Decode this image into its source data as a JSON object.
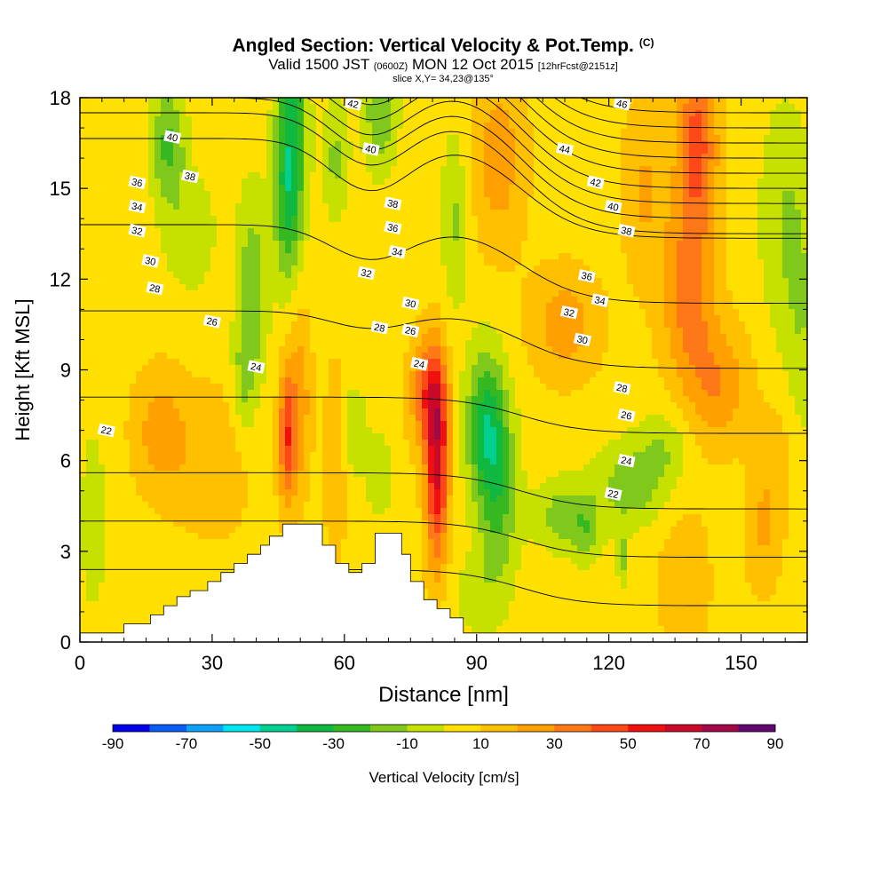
{
  "title": "Angled Section: Vertical Velocity & Pot.Temp.",
  "title_mark": "(C)",
  "subtitle_lead": "Valid 1500 JST",
  "subtitle_utc": "(0600Z)",
  "subtitle_date": "MON 12 Oct 2015",
  "subtitle_fcst": "[12hrFcst@2151z]",
  "slice_label": "slice X,Y= 34,23@135°",
  "chart_data": {
    "type": "heatmap",
    "xlabel": "Distance [nm]",
    "ylabel": "Height [Kft MSL]",
    "xlim": [
      0,
      165
    ],
    "ylim": [
      0,
      18
    ],
    "xticks": [
      0,
      30,
      60,
      90,
      120,
      150
    ],
    "yticks": [
      0,
      3,
      6,
      9,
      12,
      15,
      18
    ],
    "colorbar": {
      "label": "Vertical Velocity [cm/s]",
      "ticks": [
        -90,
        -70,
        -50,
        -30,
        -10,
        10,
        30,
        50,
        70,
        90
      ],
      "colors": [
        "#0000e8",
        "#0a5cf5",
        "#0fa0f7",
        "#00e6f0",
        "#00d090",
        "#10b840",
        "#35b820",
        "#80c81c",
        "#c6e000",
        "#ffe000",
        "#ffc000",
        "#ffa000",
        "#ff7818",
        "#ff4818",
        "#f01010",
        "#c80a28",
        "#a00848",
        "#600870"
      ]
    },
    "terrain_profile": [
      [
        0,
        0.3
      ],
      [
        10,
        0.3
      ],
      [
        10,
        0.6
      ],
      [
        16,
        0.6
      ],
      [
        16,
        0.9
      ],
      [
        19,
        0.9
      ],
      [
        19,
        1.2
      ],
      [
        22,
        1.2
      ],
      [
        22,
        1.5
      ],
      [
        25,
        1.5
      ],
      [
        25,
        1.7
      ],
      [
        29,
        1.7
      ],
      [
        29,
        2.0
      ],
      [
        32,
        2.0
      ],
      [
        32,
        2.3
      ],
      [
        35,
        2.3
      ],
      [
        35,
        2.6
      ],
      [
        38,
        2.6
      ],
      [
        38,
        2.9
      ],
      [
        41,
        2.9
      ],
      [
        41,
        3.2
      ],
      [
        43,
        3.2
      ],
      [
        43,
        3.5
      ],
      [
        46,
        3.5
      ],
      [
        46,
        3.9
      ],
      [
        55,
        3.9
      ],
      [
        55,
        3.2
      ],
      [
        58,
        3.2
      ],
      [
        58,
        2.6
      ],
      [
        61,
        2.6
      ],
      [
        61,
        2.3
      ],
      [
        64,
        2.3
      ],
      [
        64,
        2.6
      ],
      [
        67,
        2.6
      ],
      [
        67,
        3.6
      ],
      [
        73,
        3.6
      ],
      [
        73,
        2.9
      ],
      [
        75,
        2.9
      ],
      [
        75,
        2.0
      ],
      [
        78,
        2.0
      ],
      [
        78,
        1.4
      ],
      [
        81,
        1.4
      ],
      [
        81,
        1.1
      ],
      [
        84,
        1.1
      ],
      [
        84,
        0.8
      ],
      [
        87,
        0.8
      ],
      [
        87,
        0.3
      ],
      [
        165,
        0.3
      ]
    ],
    "isentropes_K": [
      22,
      24,
      26,
      28,
      30,
      32,
      34,
      36,
      38,
      40,
      42,
      44,
      46
    ],
    "w_extremes": [
      {
        "x": 81,
        "y": 5.8,
        "w": 55
      },
      {
        "x": 47,
        "y": 6.8,
        "w": 40
      },
      {
        "x": 92,
        "y": 7.2,
        "w": -38
      },
      {
        "x": 48,
        "y": 17,
        "w": -40
      },
      {
        "x": 20,
        "y": 16.5,
        "w": -28
      },
      {
        "x": 140,
        "y": 16.5,
        "w": 38
      }
    ],
    "contour_labels": [
      {
        "x": 6,
        "y": 7.0,
        "text": "22"
      },
      {
        "x": 40,
        "y": 9.1,
        "text": "24"
      },
      {
        "x": 30,
        "y": 10.6,
        "text": "26"
      },
      {
        "x": 17,
        "y": 11.7,
        "text": "28"
      },
      {
        "x": 16,
        "y": 12.6,
        "text": "30"
      },
      {
        "x": 13,
        "y": 13.6,
        "text": "32"
      },
      {
        "x": 13,
        "y": 14.4,
        "text": "34"
      },
      {
        "x": 13,
        "y": 15.2,
        "text": "36"
      },
      {
        "x": 25,
        "y": 15.4,
        "text": "38"
      },
      {
        "x": 21,
        "y": 16.7,
        "text": "40"
      },
      {
        "x": 62,
        "y": 17.8,
        "text": "42"
      },
      {
        "x": 66,
        "y": 16.3,
        "text": "40"
      },
      {
        "x": 71,
        "y": 14.5,
        "text": "38"
      },
      {
        "x": 71,
        "y": 13.7,
        "text": "36"
      },
      {
        "x": 72,
        "y": 12.9,
        "text": "34"
      },
      {
        "x": 65,
        "y": 12.2,
        "text": "32"
      },
      {
        "x": 75,
        "y": 11.2,
        "text": "30"
      },
      {
        "x": 68,
        "y": 10.4,
        "text": "28"
      },
      {
        "x": 75,
        "y": 10.3,
        "text": "26"
      },
      {
        "x": 77,
        "y": 9.2,
        "text": "24"
      },
      {
        "x": 123,
        "y": 17.8,
        "text": "46"
      },
      {
        "x": 110,
        "y": 16.3,
        "text": "44"
      },
      {
        "x": 117,
        "y": 15.2,
        "text": "42"
      },
      {
        "x": 121,
        "y": 14.4,
        "text": "40"
      },
      {
        "x": 124,
        "y": 13.6,
        "text": "38"
      },
      {
        "x": 115,
        "y": 12.1,
        "text": "36"
      },
      {
        "x": 118,
        "y": 11.3,
        "text": "34"
      },
      {
        "x": 111,
        "y": 10.9,
        "text": "32"
      },
      {
        "x": 114,
        "y": 10.0,
        "text": "30"
      },
      {
        "x": 123,
        "y": 8.4,
        "text": "28"
      },
      {
        "x": 124,
        "y": 7.5,
        "text": "26"
      },
      {
        "x": 124,
        "y": 6.0,
        "text": "24"
      },
      {
        "x": 121,
        "y": 4.9,
        "text": "22"
      }
    ]
  }
}
